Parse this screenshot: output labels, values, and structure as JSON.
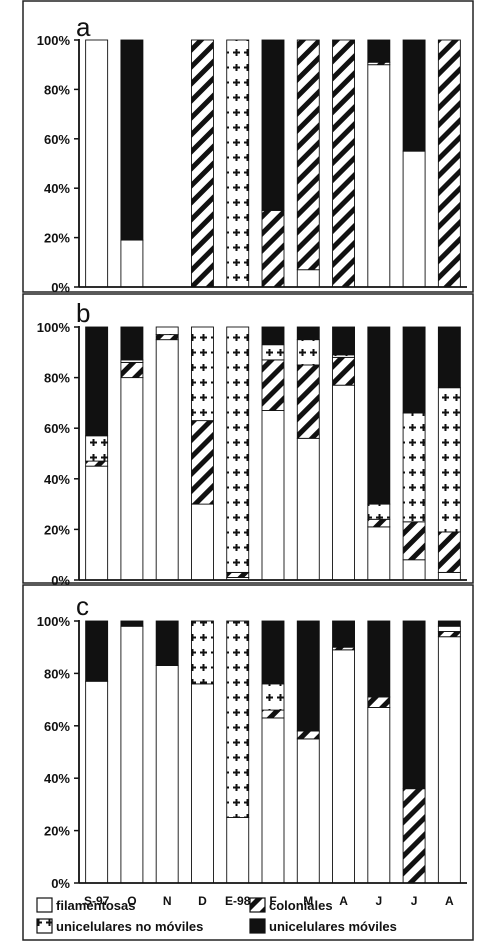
{
  "chart_data": [
    {
      "panel": "a",
      "type": "bar",
      "stacked": true,
      "ylim": [
        0,
        100
      ],
      "yticks": [
        "0%",
        "20%",
        "40%",
        "60%",
        "80%",
        "100%"
      ],
      "categories": [
        "S-97",
        "O",
        "N",
        "D",
        "E-98",
        "F",
        "M",
        "A",
        "J",
        "J",
        "A"
      ],
      "series": [
        {
          "name": "filamentosas",
          "values": [
            100,
            19,
            0,
            0,
            0,
            0,
            7,
            0,
            90,
            55,
            0
          ]
        },
        {
          "name": "coloniales",
          "values": [
            0,
            0,
            0,
            100,
            0,
            31,
            93,
            100,
            1,
            0,
            100
          ]
        },
        {
          "name": "unicelulares no móviles",
          "values": [
            0,
            0,
            0,
            0,
            100,
            0,
            0,
            0,
            0,
            0,
            0
          ]
        },
        {
          "name": "unicelulares móviles",
          "values": [
            0,
            81,
            0,
            0,
            0,
            69,
            0,
            0,
            9,
            45,
            0
          ]
        }
      ]
    },
    {
      "panel": "b",
      "type": "bar",
      "stacked": true,
      "ylim": [
        0,
        100
      ],
      "yticks": [
        "0%",
        "20%",
        "40%",
        "60%",
        "80%",
        "100%"
      ],
      "categories": [
        "S-97",
        "O",
        "N",
        "D",
        "E-98",
        "F",
        "M",
        "A",
        "J",
        "J",
        "A"
      ],
      "series": [
        {
          "name": "filamentosas",
          "values": [
            45,
            80,
            95,
            30,
            1,
            67,
            56,
            77,
            21,
            8,
            3
          ]
        },
        {
          "name": "coloniales",
          "values": [
            2,
            6,
            2,
            33,
            2,
            20,
            29,
            11,
            3,
            15,
            16
          ]
        },
        {
          "name": "unicelulares no móviles",
          "values": [
            10,
            1,
            3,
            37,
            97,
            6,
            10,
            1,
            6,
            43,
            57
          ]
        },
        {
          "name": "unicelulares móviles",
          "values": [
            43,
            13,
            0,
            0,
            0,
            7,
            5,
            11,
            70,
            34,
            24
          ]
        }
      ]
    },
    {
      "panel": "c",
      "type": "bar",
      "stacked": true,
      "ylim": [
        0,
        100
      ],
      "yticks": [
        "0%",
        "20%",
        "40%",
        "60%",
        "80%",
        "100%"
      ],
      "categories": [
        "S-97",
        "O",
        "N",
        "D",
        "E-98",
        "F",
        "M",
        "A",
        "J",
        "J",
        "A"
      ],
      "series": [
        {
          "name": "filamentosas",
          "values": [
            77,
            98,
            83,
            76,
            25,
            63,
            55,
            89,
            67,
            0,
            94
          ]
        },
        {
          "name": "coloniales",
          "values": [
            0,
            0,
            0,
            0,
            0,
            3,
            3,
            1,
            4,
            36,
            2
          ]
        },
        {
          "name": "unicelulares no móviles",
          "values": [
            0,
            0,
            0,
            24,
            75,
            10,
            0,
            0,
            0,
            0,
            2
          ]
        },
        {
          "name": "unicelulares móviles",
          "values": [
            23,
            2,
            17,
            0,
            0,
            24,
            42,
            10,
            29,
            64,
            2
          ]
        }
      ]
    }
  ],
  "legend": [
    {
      "label": "filamentosas",
      "pattern": "white"
    },
    {
      "label": "coloniales",
      "pattern": "diag"
    },
    {
      "label": "unicelulares no móviles",
      "pattern": "plus"
    },
    {
      "label": "unicelulares móviles",
      "pattern": "black"
    }
  ]
}
